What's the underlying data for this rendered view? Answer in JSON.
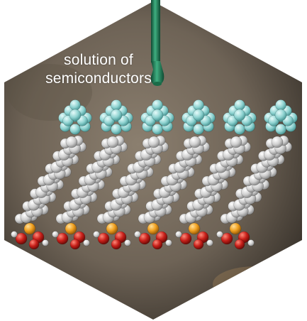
{
  "caption": {
    "line1": "solution of",
    "line2": "semiconductors"
  },
  "molecule_count": 6,
  "colors": {
    "background_dark": "#3a342c",
    "background_light": "#8b7f6f",
    "pipette": "#1f7a55",
    "fluorinated_head": "#8fd3d1",
    "carbon_chain": "#d9d9d9",
    "phosphorus": "#f0a020",
    "oxygen": "#c8201a"
  },
  "icons": [
    "pipette-icon",
    "molecule-model"
  ]
}
